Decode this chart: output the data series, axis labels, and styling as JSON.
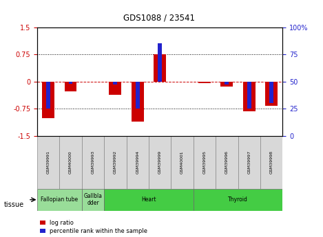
{
  "title": "GDS1088 / 23541",
  "samples": [
    "GSM39991",
    "GSM40000",
    "GSM39993",
    "GSM39992",
    "GSM39994",
    "GSM39999",
    "GSM40001",
    "GSM39995",
    "GSM39996",
    "GSM39997",
    "GSM39998"
  ],
  "log_ratio": [
    -1.02,
    -0.28,
    0.0,
    -0.36,
    -1.1,
    0.75,
    0.0,
    -0.04,
    -0.13,
    -0.82,
    -0.68
  ],
  "percentile_raw": [
    25,
    48,
    50,
    47,
    25,
    85,
    50,
    50,
    47,
    25,
    30
  ],
  "ylim": [
    -1.5,
    1.5
  ],
  "y2lim": [
    0,
    100
  ],
  "yticks": [
    -1.5,
    -0.75,
    0.0,
    0.75,
    1.5
  ],
  "ytick_labels": [
    "-1.5",
    "-0.75",
    "0",
    "0.75",
    "1.5"
  ],
  "y2ticks": [
    0,
    25,
    50,
    75,
    100
  ],
  "y2tick_labels": [
    "0",
    "25",
    "50",
    "75",
    "100%"
  ],
  "dotted_lines": [
    -0.75,
    0.75
  ],
  "bar_color": "#cc0000",
  "blue_color": "#2222cc",
  "tissue_groups": [
    {
      "label": "Fallopian tube",
      "start": 0,
      "end": 1,
      "color": "#99dd99"
    },
    {
      "label": "Gallbla\ndder",
      "start": 2,
      "end": 2,
      "color": "#99dd99"
    },
    {
      "label": "Heart",
      "start": 3,
      "end": 6,
      "color": "#44cc44"
    },
    {
      "label": "Thyroid",
      "start": 7,
      "end": 10,
      "color": "#44cc44"
    }
  ],
  "legend_log": "log ratio",
  "legend_pct": "percentile rank within the sample",
  "bg": "#ffffff",
  "left_tick_color": "#cc0000",
  "right_tick_color": "#2222cc",
  "bar_width": 0.55,
  "blue_bar_width": 0.18
}
